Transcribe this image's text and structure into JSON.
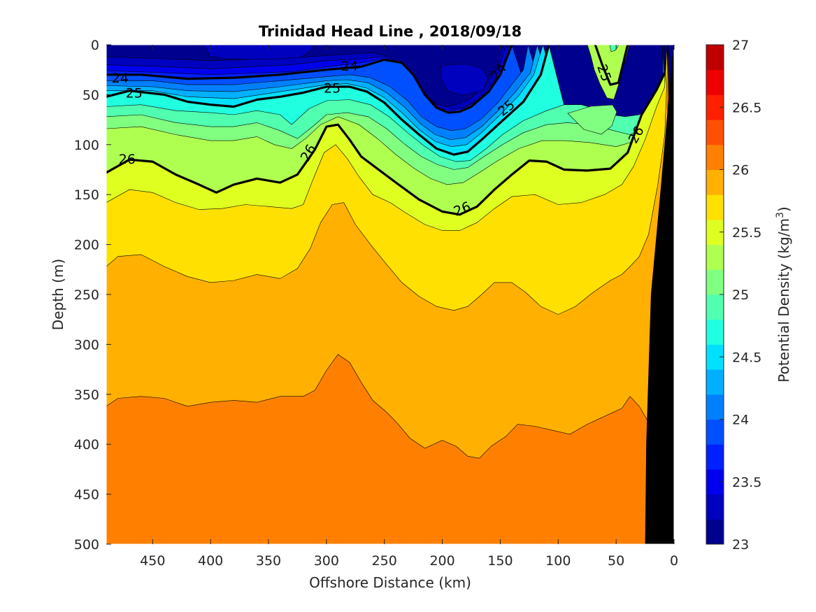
{
  "chart_data": {
    "type": "filled-contour",
    "title": "Trinidad Head Line , 2018/09/18",
    "xlabel": "Offshore Distance (km)",
    "ylabel": "Depth (m)",
    "xlim": [
      490,
      0
    ],
    "ylim": [
      0,
      500
    ],
    "x_reversed": true,
    "y_reversed": true,
    "x_ticks": [
      450,
      400,
      350,
      300,
      250,
      200,
      150,
      100,
      50,
      0
    ],
    "y_ticks": [
      0,
      50,
      100,
      150,
      200,
      250,
      300,
      350,
      400,
      450,
      500
    ],
    "colorbar": {
      "label": "Potential Density (kg/m",
      "label_superscript": "3",
      "label_suffix": ")",
      "min": 23,
      "max": 27,
      "step": 0.25,
      "tick_values": [
        23,
        23.5,
        24,
        24.5,
        25,
        25.5,
        26,
        26.5,
        27
      ],
      "tick_labels": [
        "23",
        "23.5",
        "24",
        "24.5",
        "25",
        "25.5",
        "26",
        "26.5",
        "27"
      ],
      "colors": [
        "#00008f",
        "#0000bf",
        "#0000ef",
        "#0020ff",
        "#0050ff",
        "#0080ff",
        "#00b0ff",
        "#00e0ff",
        "#20ffdf",
        "#50ffaf",
        "#80ff80",
        "#afff50",
        "#dfff20",
        "#ffe000",
        "#ffb000",
        "#ff8000",
        "#ff5000",
        "#ff2000",
        "#ef0000",
        "#bf0000"
      ]
    },
    "isopycnals": [
      {
        "level": 24,
        "label": "24",
        "points": [
          [
            490,
            30
          ],
          [
            460,
            30
          ],
          [
            420,
            34
          ],
          [
            380,
            33
          ],
          [
            340,
            30
          ],
          [
            300,
            25
          ],
          [
            270,
            22
          ],
          [
            250,
            15
          ],
          [
            235,
            18
          ],
          [
            225,
            30
          ],
          [
            215,
            50
          ],
          [
            205,
            63
          ],
          [
            195,
            68
          ],
          [
            185,
            67
          ],
          [
            175,
            62
          ],
          [
            160,
            47
          ],
          [
            150,
            30
          ],
          [
            145,
            15
          ],
          [
            140,
            0
          ]
        ]
      },
      {
        "level": 25,
        "label": "25",
        "points": [
          [
            490,
            52
          ],
          [
            470,
            46
          ],
          [
            440,
            50
          ],
          [
            420,
            57
          ],
          [
            400,
            60
          ],
          [
            380,
            62
          ],
          [
            360,
            55
          ],
          [
            340,
            52
          ],
          [
            320,
            48
          ],
          [
            300,
            42
          ],
          [
            280,
            42
          ],
          [
            265,
            47
          ],
          [
            250,
            58
          ],
          [
            235,
            75
          ],
          [
            220,
            90
          ],
          [
            205,
            104
          ],
          [
            190,
            110
          ],
          [
            178,
            107
          ],
          [
            165,
            94
          ],
          [
            150,
            78
          ],
          [
            130,
            57
          ],
          [
            115,
            30
          ],
          [
            108,
            0
          ]
        ]
      },
      {
        "level": 25,
        "label": "25",
        "points": [
          [
            68,
            0
          ],
          [
            62,
            20
          ],
          [
            55,
            40
          ],
          [
            48,
            38
          ],
          [
            40,
            0
          ]
        ]
      },
      {
        "level": 26,
        "label": "26",
        "points": [
          [
            490,
            128
          ],
          [
            470,
            115
          ],
          [
            450,
            117
          ],
          [
            430,
            130
          ],
          [
            410,
            140
          ],
          [
            395,
            148
          ],
          [
            380,
            140
          ],
          [
            360,
            134
          ],
          [
            340,
            138
          ],
          [
            325,
            130
          ],
          [
            310,
            105
          ],
          [
            300,
            82
          ],
          [
            290,
            80
          ],
          [
            280,
            95
          ],
          [
            270,
            112
          ],
          [
            255,
            125
          ],
          [
            240,
            138
          ],
          [
            220,
            155
          ],
          [
            200,
            167
          ],
          [
            185,
            170
          ],
          [
            170,
            162
          ],
          [
            155,
            145
          ],
          [
            140,
            130
          ],
          [
            125,
            116
          ],
          [
            110,
            117
          ],
          [
            95,
            125
          ],
          [
            75,
            126
          ],
          [
            55,
            124
          ],
          [
            40,
            108
          ],
          [
            28,
            70
          ],
          [
            15,
            45
          ],
          [
            8,
            28
          ]
        ]
      }
    ],
    "contour_labels": [
      {
        "text": "24",
        "x": 478,
        "depth": 33,
        "rotate": 0
      },
      {
        "text": "24",
        "x": 280,
        "depth": 21,
        "rotate": 0
      },
      {
        "text": "24",
        "x": 152,
        "depth": 27,
        "rotate": -52
      },
      {
        "text": "25",
        "x": 466,
        "depth": 48,
        "rotate": 0
      },
      {
        "text": "25",
        "x": 295,
        "depth": 43,
        "rotate": 0
      },
      {
        "text": "25",
        "x": 145,
        "depth": 63,
        "rotate": -38
      },
      {
        "text": "25",
        "x": 60,
        "depth": 28,
        "rotate": 70
      },
      {
        "text": "26",
        "x": 472,
        "depth": 114,
        "rotate": 0
      },
      {
        "text": "26",
        "x": 316,
        "depth": 108,
        "rotate": -60
      },
      {
        "text": "26",
        "x": 183,
        "depth": 164,
        "rotate": -22
      },
      {
        "text": "26",
        "x": 33,
        "depth": 90,
        "rotate": -60
      }
    ],
    "seafloor_mask": {
      "color": "#000000",
      "points": [
        [
          25,
          500
        ],
        [
          0,
          500
        ],
        [
          0,
          0
        ],
        [
          2,
          0
        ],
        [
          20,
          230
        ],
        [
          25,
          380
        ],
        [
          27,
          500
        ]
      ]
    }
  }
}
